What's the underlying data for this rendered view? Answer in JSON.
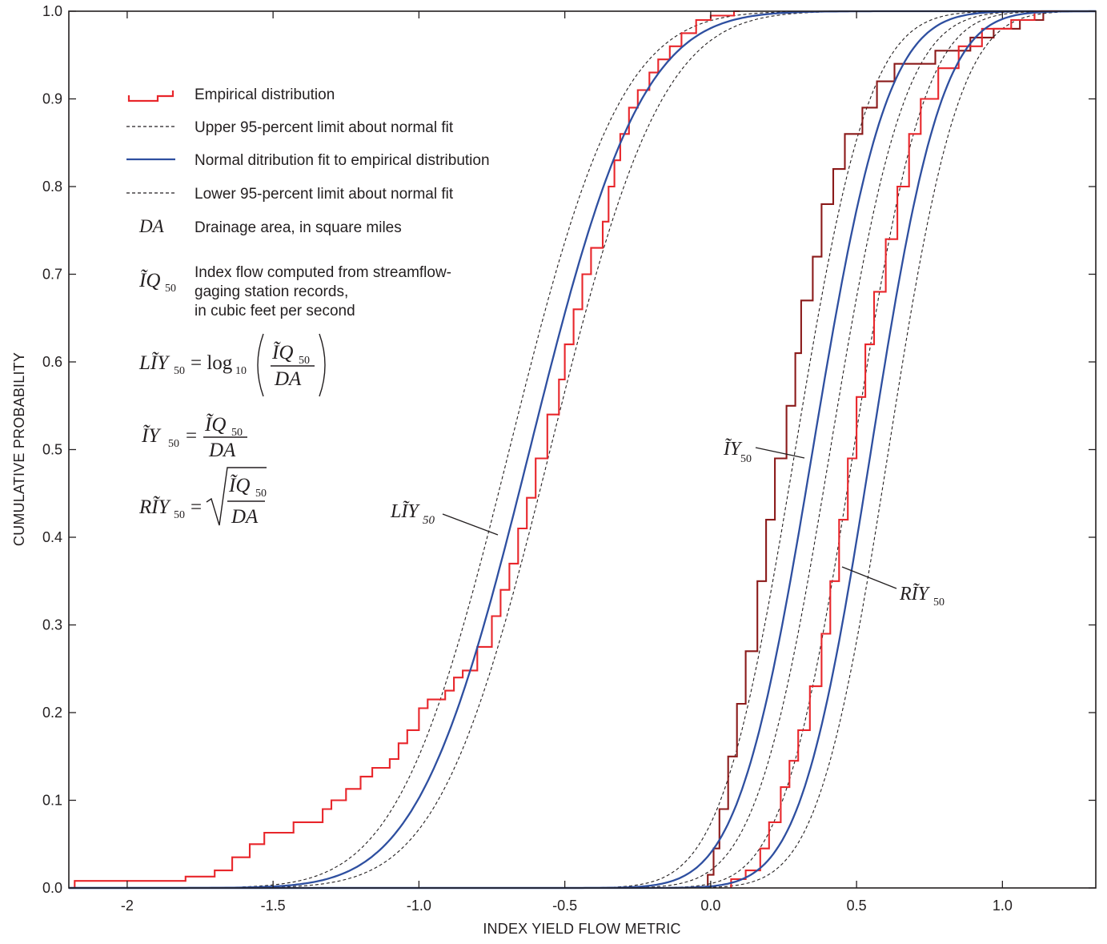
{
  "chart_data": {
    "type": "line",
    "xlabel": "INDEX YIELD FLOW METRIC",
    "ylabel": "CUMULATIVE PROBABILITY",
    "xlim": [
      -2.2,
      1.32
    ],
    "ylim": [
      0,
      1
    ],
    "x_ticks": [
      {
        "value": -2.0,
        "label": "-2"
      },
      {
        "value": -1.5,
        "label": "-1.5"
      },
      {
        "value": -1.0,
        "label": "-1.0"
      },
      {
        "value": -0.5,
        "label": "-0.5"
      },
      {
        "value": 0.0,
        "label": "0.0"
      },
      {
        "value": 0.5,
        "label": "0.5"
      },
      {
        "value": 1.0,
        "label": "1.0"
      }
    ],
    "y_ticks": [
      {
        "value": 0.0,
        "label": "0.0"
      },
      {
        "value": 0.1,
        "label": "0.1"
      },
      {
        "value": 0.2,
        "label": "0.2"
      },
      {
        "value": 0.3,
        "label": "0.3"
      },
      {
        "value": 0.4,
        "label": "0.4"
      },
      {
        "value": 0.5,
        "label": "0.5"
      },
      {
        "value": 0.6,
        "label": "0.6"
      },
      {
        "value": 0.7,
        "label": "0.7"
      },
      {
        "value": 0.8,
        "label": "0.8"
      },
      {
        "value": 0.9,
        "label": "0.9"
      },
      {
        "value": 1.0,
        "label": "1.0"
      }
    ],
    "grid": false,
    "legend_position": "top-left",
    "legend": [
      {
        "label": "Empirical distribution",
        "style": "step",
        "color": "#e8262b"
      },
      {
        "label": "Upper 95-percent limit about normal fit",
        "style": "dashed",
        "color": "#231f20"
      },
      {
        "label": "Normal ditribution fit to empirical distribution",
        "style": "solid",
        "color": "#2e4fa0"
      },
      {
        "label": "Lower 95-percent limit about normal fit",
        "style": "dashed",
        "color": "#231f20"
      },
      {
        "label": "Drainage area, in square miles",
        "symbol": "DA"
      },
      {
        "label_lines": [
          "Index flow computed from streamflow-",
          "gaging station records,",
          "in cubic feet per second"
        ],
        "symbol": "ĨQ50"
      }
    ],
    "equations": [
      {
        "lhs": "LĨY50",
        "rhs": "log10(ĨQ50 / DA)"
      },
      {
        "lhs": "ĨY50",
        "rhs": "ĨQ50 / DA"
      },
      {
        "lhs": "RĨY50",
        "rhs": "sqrt(ĨQ50 / DA)"
      }
    ],
    "colors": {
      "empirical": "#e8262b",
      "empirical_iy": "#8b1a1a",
      "normal_fit": "#2e4fa0",
      "limits": "#231f20",
      "axis": "#231f20"
    },
    "series": [
      {
        "name": "LĨY50",
        "normal_fit": {
          "mean": -0.62,
          "sd": 0.3
        },
        "limits": {
          "lower_mean": -0.55,
          "upper_mean": -0.69
        },
        "empirical_points": [
          [
            -2.18,
            0.0
          ],
          [
            -2.18,
            0.008
          ],
          [
            -1.8,
            0.008
          ],
          [
            -1.8,
            0.013
          ],
          [
            -1.7,
            0.013
          ],
          [
            -1.7,
            0.02
          ],
          [
            -1.64,
            0.02
          ],
          [
            -1.64,
            0.035
          ],
          [
            -1.58,
            0.035
          ],
          [
            -1.58,
            0.05
          ],
          [
            -1.53,
            0.05
          ],
          [
            -1.53,
            0.063
          ],
          [
            -1.43,
            0.063
          ],
          [
            -1.43,
            0.075
          ],
          [
            -1.33,
            0.075
          ],
          [
            -1.33,
            0.09
          ],
          [
            -1.3,
            0.09
          ],
          [
            -1.3,
            0.1
          ],
          [
            -1.25,
            0.1
          ],
          [
            -1.25,
            0.113
          ],
          [
            -1.2,
            0.113
          ],
          [
            -1.2,
            0.127
          ],
          [
            -1.16,
            0.127
          ],
          [
            -1.16,
            0.137
          ],
          [
            -1.1,
            0.137
          ],
          [
            -1.1,
            0.147
          ],
          [
            -1.07,
            0.147
          ],
          [
            -1.07,
            0.165
          ],
          [
            -1.04,
            0.165
          ],
          [
            -1.04,
            0.18
          ],
          [
            -1.0,
            0.18
          ],
          [
            -1.0,
            0.205
          ],
          [
            -0.97,
            0.205
          ],
          [
            -0.97,
            0.215
          ],
          [
            -0.91,
            0.215
          ],
          [
            -0.91,
            0.225
          ],
          [
            -0.88,
            0.225
          ],
          [
            -0.88,
            0.24
          ],
          [
            -0.85,
            0.24
          ],
          [
            -0.85,
            0.248
          ],
          [
            -0.8,
            0.248
          ],
          [
            -0.8,
            0.275
          ],
          [
            -0.75,
            0.275
          ],
          [
            -0.75,
            0.31
          ],
          [
            -0.72,
            0.31
          ],
          [
            -0.72,
            0.34
          ],
          [
            -0.69,
            0.34
          ],
          [
            -0.69,
            0.37
          ],
          [
            -0.66,
            0.37
          ],
          [
            -0.66,
            0.41
          ],
          [
            -0.63,
            0.41
          ],
          [
            -0.63,
            0.445
          ],
          [
            -0.6,
            0.445
          ],
          [
            -0.6,
            0.49
          ],
          [
            -0.56,
            0.49
          ],
          [
            -0.56,
            0.54
          ],
          [
            -0.52,
            0.54
          ],
          [
            -0.52,
            0.58
          ],
          [
            -0.5,
            0.58
          ],
          [
            -0.5,
            0.62
          ],
          [
            -0.47,
            0.62
          ],
          [
            -0.47,
            0.66
          ],
          [
            -0.44,
            0.66
          ],
          [
            -0.44,
            0.7
          ],
          [
            -0.41,
            0.7
          ],
          [
            -0.41,
            0.73
          ],
          [
            -0.37,
            0.73
          ],
          [
            -0.37,
            0.76
          ],
          [
            -0.35,
            0.76
          ],
          [
            -0.35,
            0.8
          ],
          [
            -0.33,
            0.8
          ],
          [
            -0.33,
            0.83
          ],
          [
            -0.31,
            0.83
          ],
          [
            -0.31,
            0.86
          ],
          [
            -0.28,
            0.86
          ],
          [
            -0.28,
            0.89
          ],
          [
            -0.25,
            0.89
          ],
          [
            -0.25,
            0.91
          ],
          [
            -0.21,
            0.91
          ],
          [
            -0.21,
            0.93
          ],
          [
            -0.18,
            0.93
          ],
          [
            -0.18,
            0.945
          ],
          [
            -0.14,
            0.945
          ],
          [
            -0.14,
            0.96
          ],
          [
            -0.1,
            0.96
          ],
          [
            -0.1,
            0.975
          ],
          [
            -0.05,
            0.975
          ],
          [
            -0.05,
            0.99
          ],
          [
            0.0,
            0.99
          ],
          [
            0.0,
            0.995
          ],
          [
            0.08,
            0.995
          ],
          [
            0.08,
            1.0
          ],
          [
            0.1,
            1.0
          ]
        ]
      },
      {
        "name": "ĨY50",
        "normal_fit": {
          "mean": 0.35,
          "sd": 0.2
        },
        "limits": {
          "lower_mean": 0.41,
          "upper_mean": 0.29
        },
        "empirical_points": [
          [
            -0.01,
            0.0
          ],
          [
            -0.01,
            0.015
          ],
          [
            0.01,
            0.015
          ],
          [
            0.01,
            0.045
          ],
          [
            0.03,
            0.045
          ],
          [
            0.03,
            0.09
          ],
          [
            0.06,
            0.09
          ],
          [
            0.06,
            0.15
          ],
          [
            0.09,
            0.15
          ],
          [
            0.09,
            0.21
          ],
          [
            0.12,
            0.21
          ],
          [
            0.12,
            0.27
          ],
          [
            0.16,
            0.27
          ],
          [
            0.16,
            0.35
          ],
          [
            0.19,
            0.35
          ],
          [
            0.19,
            0.42
          ],
          [
            0.22,
            0.42
          ],
          [
            0.22,
            0.49
          ],
          [
            0.26,
            0.49
          ],
          [
            0.26,
            0.55
          ],
          [
            0.29,
            0.55
          ],
          [
            0.29,
            0.61
          ],
          [
            0.31,
            0.61
          ],
          [
            0.31,
            0.67
          ],
          [
            0.35,
            0.67
          ],
          [
            0.35,
            0.72
          ],
          [
            0.38,
            0.72
          ],
          [
            0.38,
            0.78
          ],
          [
            0.42,
            0.78
          ],
          [
            0.42,
            0.82
          ],
          [
            0.46,
            0.82
          ],
          [
            0.46,
            0.86
          ],
          [
            0.52,
            0.86
          ],
          [
            0.52,
            0.89
          ],
          [
            0.57,
            0.89
          ],
          [
            0.57,
            0.92
          ],
          [
            0.63,
            0.92
          ],
          [
            0.63,
            0.94
          ],
          [
            0.77,
            0.94
          ],
          [
            0.77,
            0.955
          ],
          [
            0.89,
            0.955
          ],
          [
            0.89,
            0.97
          ],
          [
            0.97,
            0.97
          ],
          [
            0.97,
            0.98
          ],
          [
            1.06,
            0.98
          ],
          [
            1.06,
            0.99
          ],
          [
            1.14,
            0.99
          ],
          [
            1.14,
            1.0
          ],
          [
            1.32,
            1.0
          ]
        ]
      },
      {
        "name": "RĨY50",
        "normal_fit": {
          "mean": 0.55,
          "sd": 0.19
        },
        "limits": {
          "lower_mean": 0.61,
          "upper_mean": 0.49
        },
        "empirical_points": [
          [
            0.07,
            0.0
          ],
          [
            0.07,
            0.01
          ],
          [
            0.12,
            0.01
          ],
          [
            0.12,
            0.02
          ],
          [
            0.17,
            0.02
          ],
          [
            0.17,
            0.045
          ],
          [
            0.2,
            0.045
          ],
          [
            0.2,
            0.075
          ],
          [
            0.24,
            0.075
          ],
          [
            0.24,
            0.115
          ],
          [
            0.27,
            0.115
          ],
          [
            0.27,
            0.145
          ],
          [
            0.3,
            0.145
          ],
          [
            0.3,
            0.18
          ],
          [
            0.34,
            0.18
          ],
          [
            0.34,
            0.23
          ],
          [
            0.38,
            0.23
          ],
          [
            0.38,
            0.29
          ],
          [
            0.41,
            0.29
          ],
          [
            0.41,
            0.35
          ],
          [
            0.44,
            0.35
          ],
          [
            0.44,
            0.42
          ],
          [
            0.47,
            0.42
          ],
          [
            0.47,
            0.49
          ],
          [
            0.5,
            0.49
          ],
          [
            0.5,
            0.56
          ],
          [
            0.53,
            0.56
          ],
          [
            0.53,
            0.62
          ],
          [
            0.56,
            0.62
          ],
          [
            0.56,
            0.68
          ],
          [
            0.6,
            0.68
          ],
          [
            0.6,
            0.74
          ],
          [
            0.64,
            0.74
          ],
          [
            0.64,
            0.8
          ],
          [
            0.68,
            0.8
          ],
          [
            0.68,
            0.86
          ],
          [
            0.72,
            0.86
          ],
          [
            0.72,
            0.9
          ],
          [
            0.78,
            0.9
          ],
          [
            0.78,
            0.935
          ],
          [
            0.85,
            0.935
          ],
          [
            0.85,
            0.96
          ],
          [
            0.93,
            0.96
          ],
          [
            0.93,
            0.98
          ],
          [
            1.03,
            0.98
          ],
          [
            1.03,
            0.99
          ],
          [
            1.11,
            0.99
          ],
          [
            1.11,
            1.0
          ],
          [
            1.32,
            1.0
          ]
        ]
      }
    ],
    "curve_labels": [
      {
        "series": "LĨY50",
        "text": "LĨY",
        "sub": "50"
      },
      {
        "series": "ĨY50",
        "text": "ĨY",
        "sub": "50"
      },
      {
        "series": "RĨY50",
        "text": "RĨY",
        "sub": "50"
      }
    ]
  }
}
